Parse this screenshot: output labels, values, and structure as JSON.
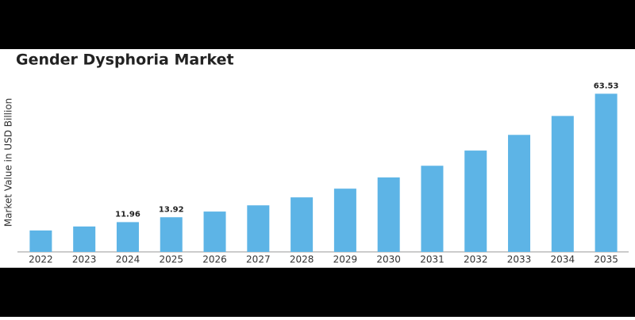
{
  "chart_data": {
    "type": "bar",
    "title": "Gender Dysphoria Market",
    "y_label": "Market Value in USD Billion",
    "categories": [
      "2022",
      "2023",
      "2024",
      "2025",
      "2026",
      "2027",
      "2028",
      "2029",
      "2030",
      "2031",
      "2032",
      "2033",
      "2034",
      "2035"
    ],
    "values": [
      8.6,
      10.2,
      11.96,
      13.92,
      16.2,
      18.7,
      21.9,
      25.4,
      29.9,
      34.6,
      40.7,
      47.0,
      54.6,
      63.53
    ],
    "value_labels": [
      null,
      null,
      "11.96",
      "13.92",
      null,
      null,
      null,
      null,
      null,
      null,
      null,
      null,
      null,
      "63.53"
    ],
    "color": "#5db4e6",
    "ylim": [
      0,
      70
    ]
  }
}
